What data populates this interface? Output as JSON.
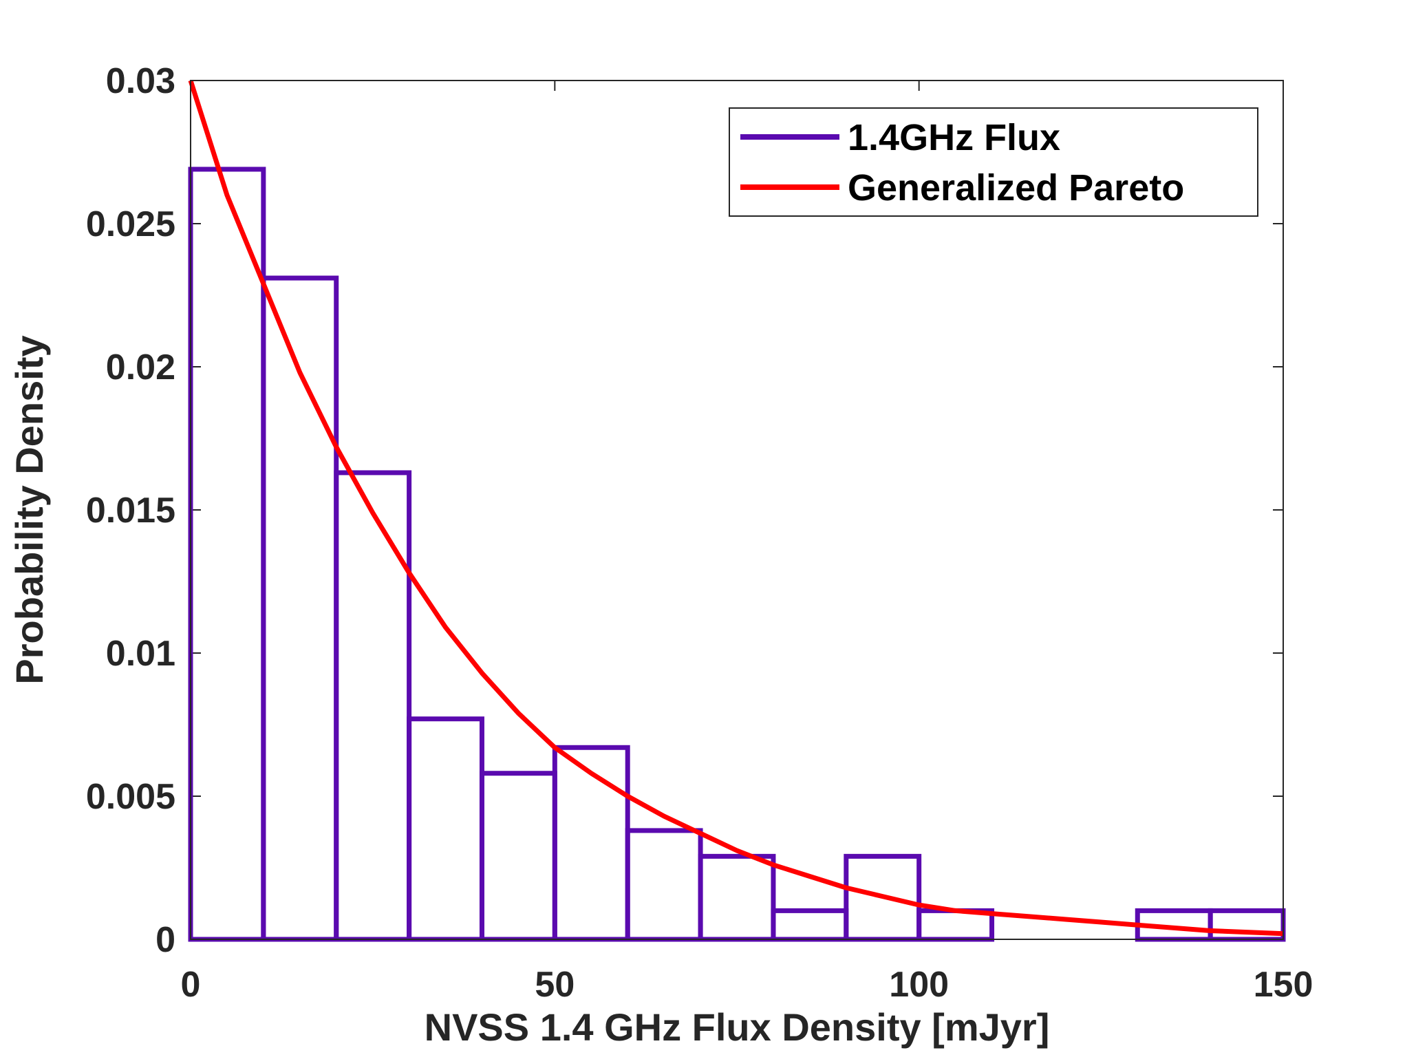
{
  "chart_data": {
    "type": "bar",
    "title": "",
    "xlabel": "NVSS 1.4 GHz Flux Density  [mJyr]",
    "ylabel": "Probability Density",
    "xlim": [
      0,
      150
    ],
    "ylim": [
      0,
      0.03
    ],
    "xticks": [
      0,
      50,
      100,
      150
    ],
    "xtick_labels": [
      "0",
      "50",
      "100",
      "150"
    ],
    "yticks": [
      0,
      0.005,
      0.01,
      0.015,
      0.02,
      0.025,
      0.03
    ],
    "ytick_labels": [
      "0",
      "0.005",
      "0.01",
      "0.015",
      "0.02",
      "0.025",
      "0.03"
    ],
    "grid": false,
    "legend_position": "top-right",
    "series": [
      {
        "name": "1.4GHz Flux",
        "kind": "histogram",
        "color": "#5A0AAF",
        "bin_edges": [
          0,
          10,
          20,
          30,
          40,
          50,
          60,
          70,
          80,
          90,
          100,
          110,
          120,
          130,
          140,
          150
        ],
        "values": [
          0.0269,
          0.0231,
          0.0163,
          0.0077,
          0.0058,
          0.0067,
          0.0038,
          0.0029,
          0.001,
          0.0029,
          0.001,
          0.0,
          0.0,
          0.001,
          0.001
        ]
      },
      {
        "name": "Generalized Pareto",
        "kind": "line",
        "color": "#FF0000",
        "x": [
          0,
          5,
          10,
          15,
          20,
          25,
          30,
          35,
          40,
          45,
          50,
          55,
          60,
          65,
          70,
          75,
          80,
          85,
          90,
          95,
          100,
          105,
          110,
          115,
          120,
          125,
          130,
          135,
          140,
          145,
          150
        ],
        "y": [
          0.03,
          0.026,
          0.0229,
          0.0198,
          0.0172,
          0.0149,
          0.0128,
          0.0109,
          0.0093,
          0.0079,
          0.0067,
          0.0058,
          0.005,
          0.0043,
          0.0037,
          0.0031,
          0.0026,
          0.0022,
          0.0018,
          0.0015,
          0.0012,
          0.001,
          0.0009,
          0.0008,
          0.0007,
          0.0006,
          0.0005,
          0.0004,
          0.0003,
          0.00025,
          0.0002
        ]
      }
    ]
  }
}
